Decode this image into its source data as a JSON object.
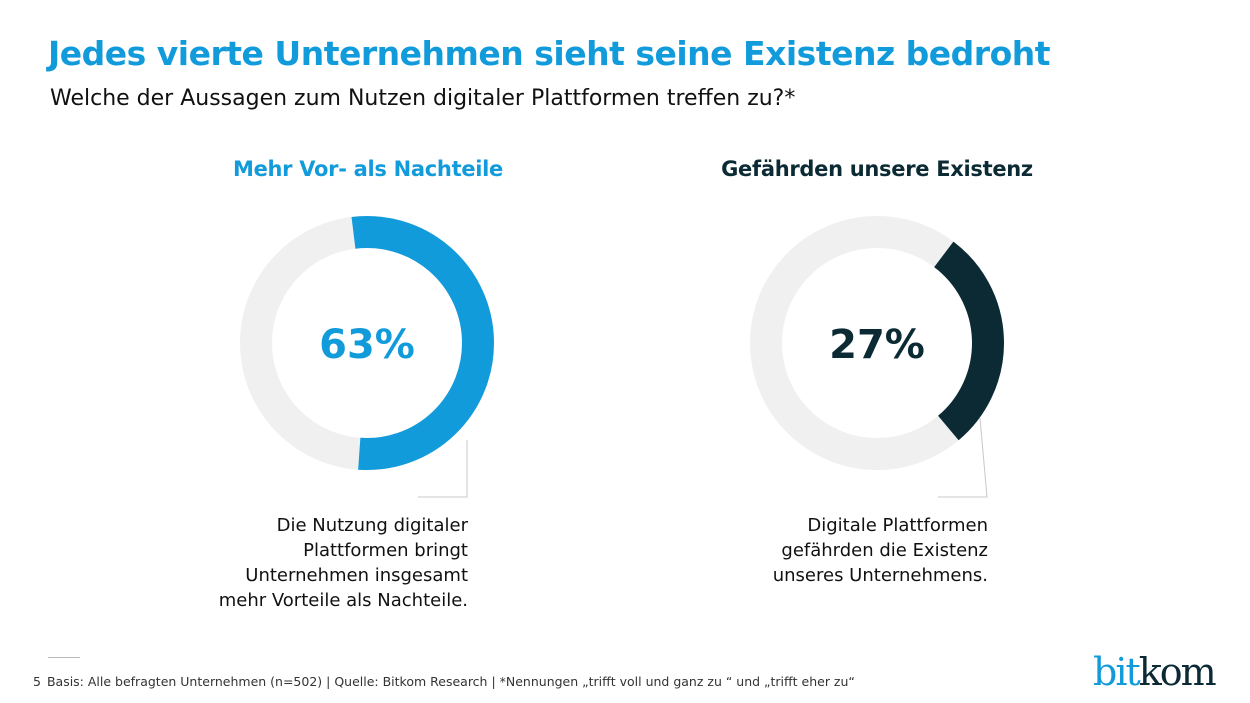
{
  "header": {
    "title": "Jedes vierte Unternehmen sieht seine Existenz bedroht",
    "subtitle": "Welche der Aussagen zum Nutzen digitaler Plattformen treffen zu?*"
  },
  "chart_data": [
    {
      "type": "pie",
      "subtype": "donut",
      "title": "Mehr Vor- als Nachteile",
      "value": 63,
      "value_label": "63%",
      "description": [
        "Die Nutzung digitaler",
        "Plattformen bringt",
        "Unternehmen insgesamt",
        "mehr Vorteile als Nachteile."
      ],
      "color": "#129bdb",
      "track_color": "#f0f0f0"
    },
    {
      "type": "pie",
      "subtype": "donut",
      "title": "Gefährden unsere Existenz",
      "value": 27,
      "value_label": "27%",
      "description": [
        "Digitale Plattformen",
        "gefährden die Existenz",
        "unseres Unternehmens."
      ],
      "color": "#0b2a33",
      "track_color": "#f0f0f0"
    }
  ],
  "footer": {
    "page_number": "5",
    "text": "Basis: Alle befragten Unternehmen (n=502) | Quelle: Bitkom Research | *Nennungen „trifft voll und ganz zu “ und „trifft eher zu“"
  },
  "logo": {
    "part1": "bit",
    "part2": "kom"
  }
}
